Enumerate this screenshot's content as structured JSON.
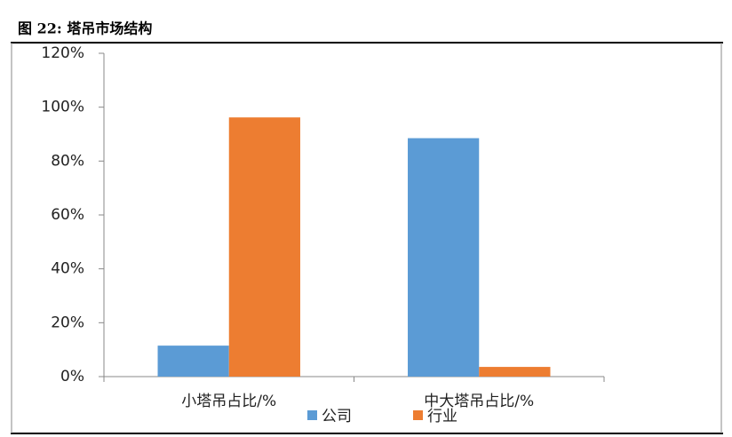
{
  "chart_data": {
    "type": "bar",
    "title": "图 22: 塔吊市场结构",
    "categories": [
      "小塔吊占比/%",
      "中大塔吊占比/%"
    ],
    "series": [
      {
        "name": "公司",
        "color": "#5b9bd5",
        "values": [
          11.5,
          88.5
        ]
      },
      {
        "name": "行业",
        "color": "#ed7d31",
        "values": [
          96.2,
          3.6
        ]
      }
    ],
    "ylim": [
      0,
      120
    ],
    "yticks": [
      {
        "value": 0,
        "label": "0%"
      },
      {
        "value": 20,
        "label": "20%"
      },
      {
        "value": 40,
        "label": "40%"
      },
      {
        "value": 60,
        "label": "60%"
      },
      {
        "value": 80,
        "label": "80%"
      },
      {
        "value": 100,
        "label": "100%"
      },
      {
        "value": 120,
        "label": "120%"
      }
    ],
    "grid": false
  }
}
